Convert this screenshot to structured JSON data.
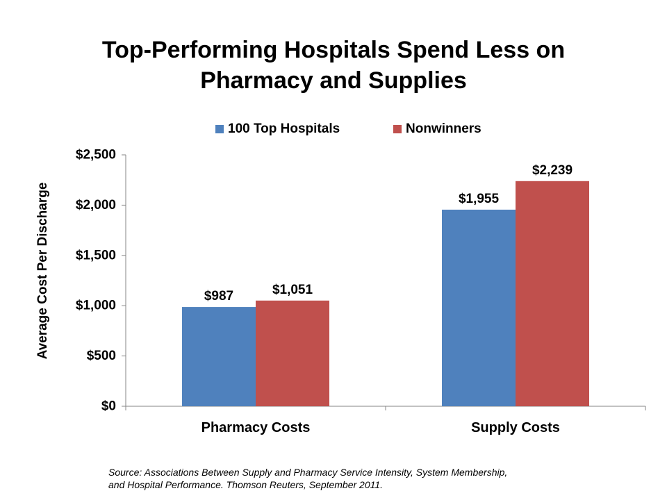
{
  "title_lines": [
    "Top-Performing Hospitals Spend Less on",
    "Pharmacy and Supplies"
  ],
  "source_lines": [
    "Source: Associations Between Supply and Pharmacy Service Intensity, System Membership,",
    "and Hospital Performance. Thomson Reuters, September 2011."
  ],
  "chart_data": {
    "type": "bar",
    "title": "Top-Performing Hospitals Spend Less on Pharmacy and Supplies",
    "ylabel": "Average Cost Per Discharge",
    "xlabel": "",
    "categories": [
      "Pharmacy Costs",
      "Supply Costs"
    ],
    "series": [
      {
        "name": "100 Top Hospitals",
        "color": "#4F81BD",
        "values": [
          987,
          1955
        ],
        "labels": [
          "$987",
          "$1,955"
        ]
      },
      {
        "name": "Nonwinners",
        "color": "#C0504D",
        "values": [
          1051,
          2239
        ],
        "labels": [
          "$1,051",
          "$2,239"
        ]
      }
    ],
    "ylim": [
      0,
      2500
    ],
    "yticks": [
      0,
      500,
      1000,
      1500,
      2000,
      2500
    ],
    "ytick_labels": [
      "$0",
      "$500",
      "$1,000",
      "$1,500",
      "$2,000",
      "$2,500"
    ],
    "grid": false,
    "legend": "top"
  }
}
